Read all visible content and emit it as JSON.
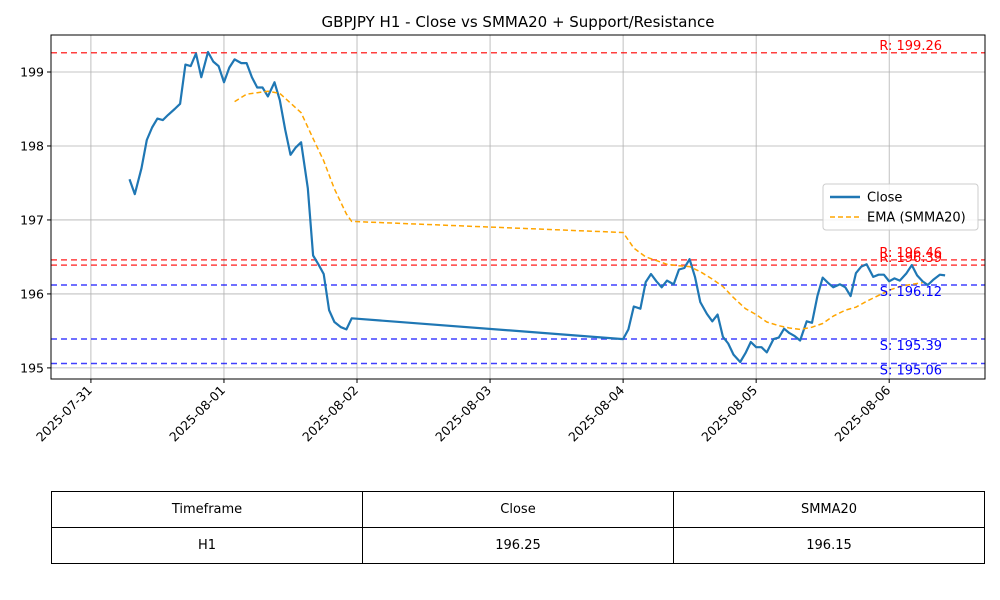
{
  "chart_data": {
    "type": "line",
    "title": "GBPJPY H1 - Close vs SMMA20 + Support/Resistance",
    "xlabel": "",
    "ylabel": "",
    "ylim": [
      194.85,
      199.5
    ],
    "x_tick_labels": [
      "2025-07-31",
      "2025-08-01",
      "2025-08-02",
      "2025-08-03",
      "2025-08-04",
      "2025-08-05",
      "2025-08-06"
    ],
    "y_ticks": [
      195,
      196,
      197,
      198,
      199
    ],
    "grid": true,
    "legend_position": "center-right",
    "series": [
      {
        "name": "Close",
        "style": "solid",
        "color": "#1f77b4",
        "x": [
          0.29,
          0.33,
          0.38,
          0.42,
          0.46,
          0.5,
          0.54,
          0.58,
          0.63,
          0.67,
          0.71,
          0.75,
          0.79,
          0.83,
          0.88,
          0.92,
          0.96,
          1.0,
          1.04,
          1.08,
          1.13,
          1.17,
          1.21,
          1.25,
          1.29,
          1.33,
          1.38,
          1.42,
          1.46,
          1.5,
          1.54,
          1.58,
          1.63,
          1.67,
          1.71,
          1.75,
          1.79,
          1.83,
          1.88,
          1.92,
          1.96,
          4.0,
          4.04,
          4.08,
          4.13,
          4.17,
          4.21,
          4.25,
          4.29,
          4.33,
          4.38,
          4.42,
          4.46,
          4.5,
          4.54,
          4.58,
          4.63,
          4.67,
          4.71,
          4.75,
          4.79,
          4.83,
          4.88,
          4.92,
          4.96,
          5.0,
          5.04,
          5.08,
          5.13,
          5.17,
          5.21,
          5.25,
          5.29,
          5.33,
          5.38,
          5.42,
          5.46,
          5.5,
          5.54,
          5.58,
          5.63,
          5.67,
          5.71,
          5.75,
          5.79,
          5.83,
          5.88,
          5.92,
          5.96,
          6.0,
          6.04,
          6.08,
          6.13,
          6.17,
          6.21,
          6.25,
          6.29,
          6.33,
          6.38,
          6.42
        ],
        "values": [
          197.55,
          197.35,
          197.7,
          198.08,
          198.25,
          198.37,
          198.35,
          198.42,
          198.5,
          198.57,
          199.1,
          199.08,
          199.25,
          198.93,
          199.27,
          199.14,
          199.08,
          198.86,
          199.06,
          199.17,
          199.12,
          199.12,
          198.93,
          198.79,
          198.79,
          198.67,
          198.86,
          198.62,
          198.22,
          197.88,
          197.98,
          198.05,
          197.43,
          196.52,
          196.4,
          196.27,
          195.78,
          195.62,
          195.55,
          195.52,
          195.67,
          195.39,
          195.52,
          195.83,
          195.8,
          196.16,
          196.27,
          196.17,
          196.09,
          196.18,
          196.13,
          196.33,
          196.35,
          196.47,
          196.23,
          195.89,
          195.73,
          195.63,
          195.72,
          195.42,
          195.33,
          195.18,
          195.08,
          195.2,
          195.35,
          195.28,
          195.28,
          195.21,
          195.39,
          195.41,
          195.53,
          195.47,
          195.43,
          195.37,
          195.63,
          195.61,
          195.97,
          196.22,
          196.15,
          196.09,
          196.13,
          196.09,
          195.97,
          196.28,
          196.37,
          196.4,
          196.23,
          196.26,
          196.26,
          196.17,
          196.21,
          196.18,
          196.28,
          196.39,
          196.25,
          196.17,
          196.12,
          196.19,
          196.26,
          196.25
        ]
      },
      {
        "name": "EMA (SMMA20)",
        "style": "dashed",
        "color": "#ffa500",
        "x": [
          1.08,
          1.17,
          1.25,
          1.33,
          1.42,
          1.5,
          1.58,
          1.67,
          1.75,
          1.83,
          1.92,
          1.96,
          4.0,
          4.08,
          4.17,
          4.25,
          4.33,
          4.42,
          4.5,
          4.58,
          4.67,
          4.75,
          4.83,
          4.92,
          5.0,
          5.08,
          5.17,
          5.25,
          5.33,
          5.42,
          5.5,
          5.58,
          5.67,
          5.75,
          5.83,
          5.92,
          6.0,
          6.08,
          6.17,
          6.25
        ],
        "values": [
          198.6,
          198.7,
          198.72,
          198.74,
          198.71,
          198.58,
          198.45,
          198.1,
          197.8,
          197.42,
          197.08,
          196.98,
          196.83,
          196.62,
          196.5,
          196.45,
          196.4,
          196.38,
          196.37,
          196.3,
          196.2,
          196.1,
          195.95,
          195.8,
          195.72,
          195.62,
          195.57,
          195.54,
          195.52,
          195.55,
          195.6,
          195.7,
          195.78,
          195.82,
          195.9,
          195.98,
          196.05,
          196.1,
          196.13,
          196.15
        ]
      }
    ],
    "resistance_levels": [
      {
        "value": 199.26,
        "label": "R: 199.26",
        "color": "#ff0000"
      },
      {
        "value": 196.46,
        "label": "R: 196.46",
        "color": "#ff0000"
      },
      {
        "value": 196.39,
        "label": "R: 196.39",
        "color": "#ff0000"
      }
    ],
    "support_levels": [
      {
        "value": 196.12,
        "label": "S: 196.12",
        "color": "#0000ff"
      },
      {
        "value": 195.39,
        "label": "S: 195.39",
        "color": "#0000ff"
      },
      {
        "value": 195.06,
        "label": "S: 195.06",
        "color": "#0000ff"
      }
    ]
  },
  "table": {
    "headers": [
      "Timeframe",
      "Close",
      "SMMA20"
    ],
    "row": [
      "H1",
      "196.25",
      "196.15"
    ]
  }
}
